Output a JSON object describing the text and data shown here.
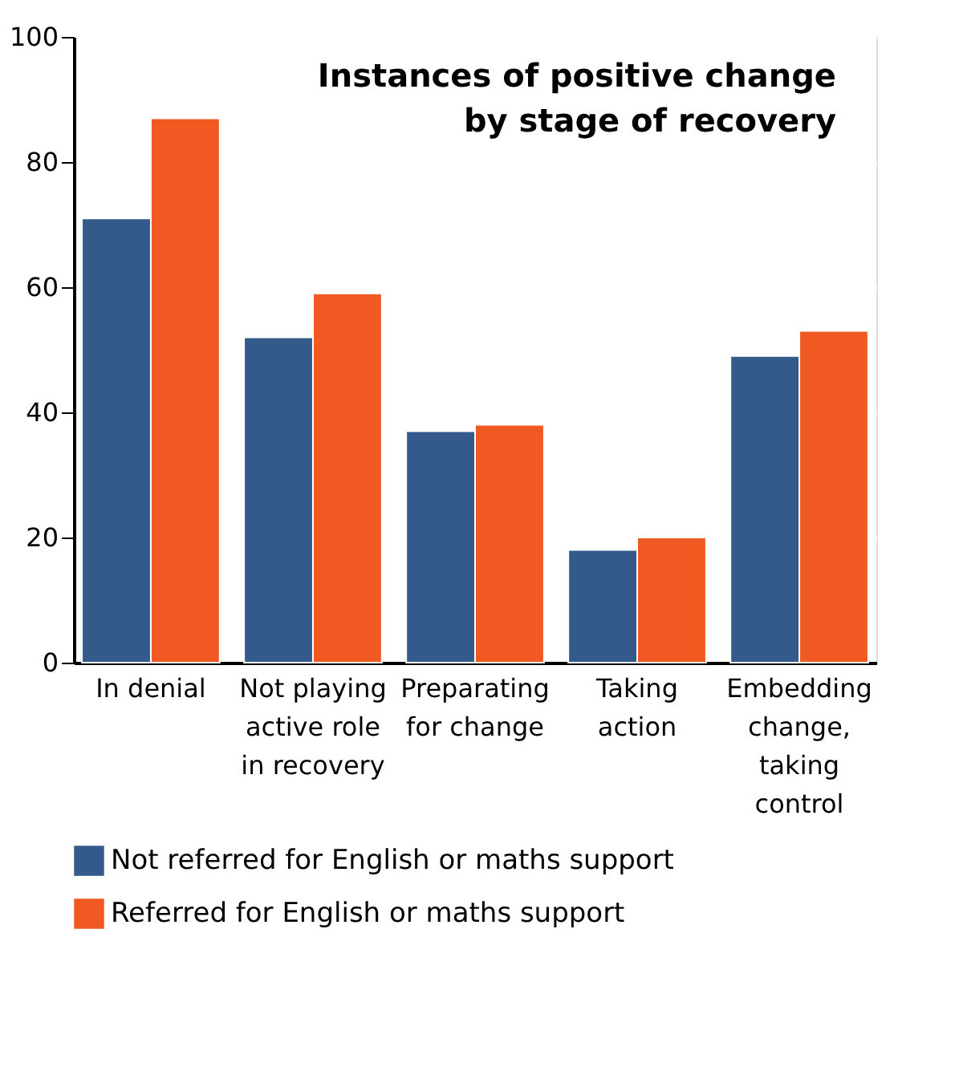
{
  "chart_data": {
    "type": "bar",
    "title": "Instances of positive change by stage of recovery",
    "categories": [
      "In denial",
      "Not playing active role in recovery",
      "Preparating for change",
      "Taking action",
      "Embedding change, taking control"
    ],
    "series": [
      {
        "name": "Not referred for English or maths support",
        "color": "#335a8a",
        "values": [
          71,
          52,
          37,
          18,
          49
        ]
      },
      {
        "name": "Referred for English or maths support",
        "color": "#f05a22",
        "values": [
          87,
          59,
          38,
          20,
          53
        ]
      }
    ],
    "ylim": [
      0,
      100
    ],
    "yticks": [
      0,
      20,
      40,
      60,
      80,
      100
    ],
    "grid": "y",
    "legend": "bottom"
  }
}
